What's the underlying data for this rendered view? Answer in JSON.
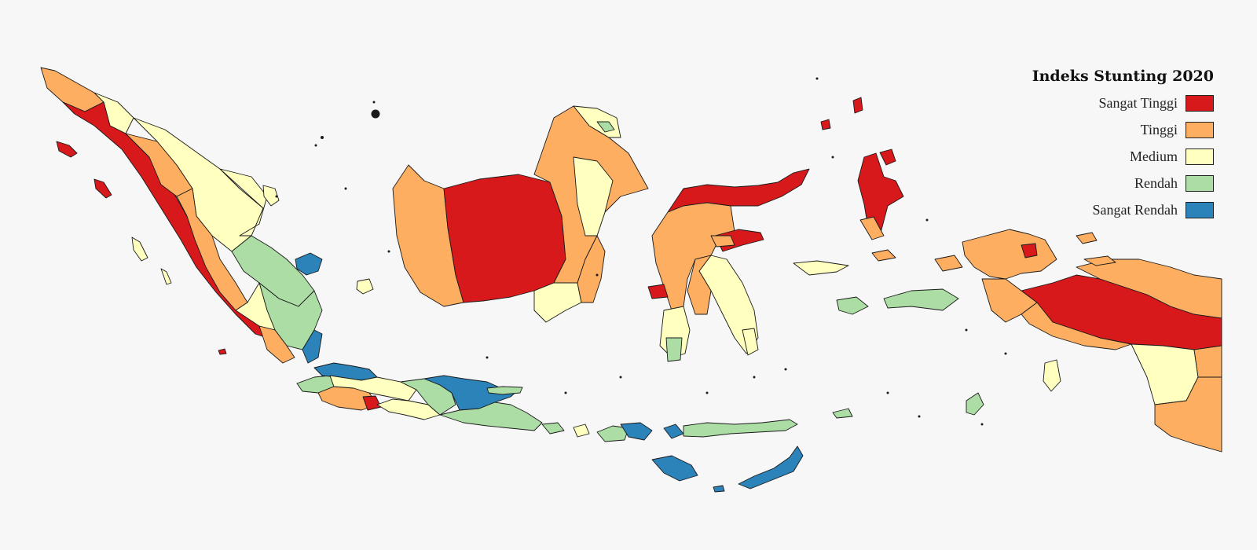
{
  "legend": {
    "title": "Indeks Stunting 2020",
    "classes": [
      {
        "label": "Sangat Tinggi",
        "color": "#d7191c"
      },
      {
        "label": "Tinggi",
        "color": "#fdae61"
      },
      {
        "label": "Medium",
        "color": "#ffffbf"
      },
      {
        "label": "Rendah",
        "color": "#abdda4"
      },
      {
        "label": "Sangat Rendah",
        "color": "#2b83ba"
      }
    ]
  }
}
